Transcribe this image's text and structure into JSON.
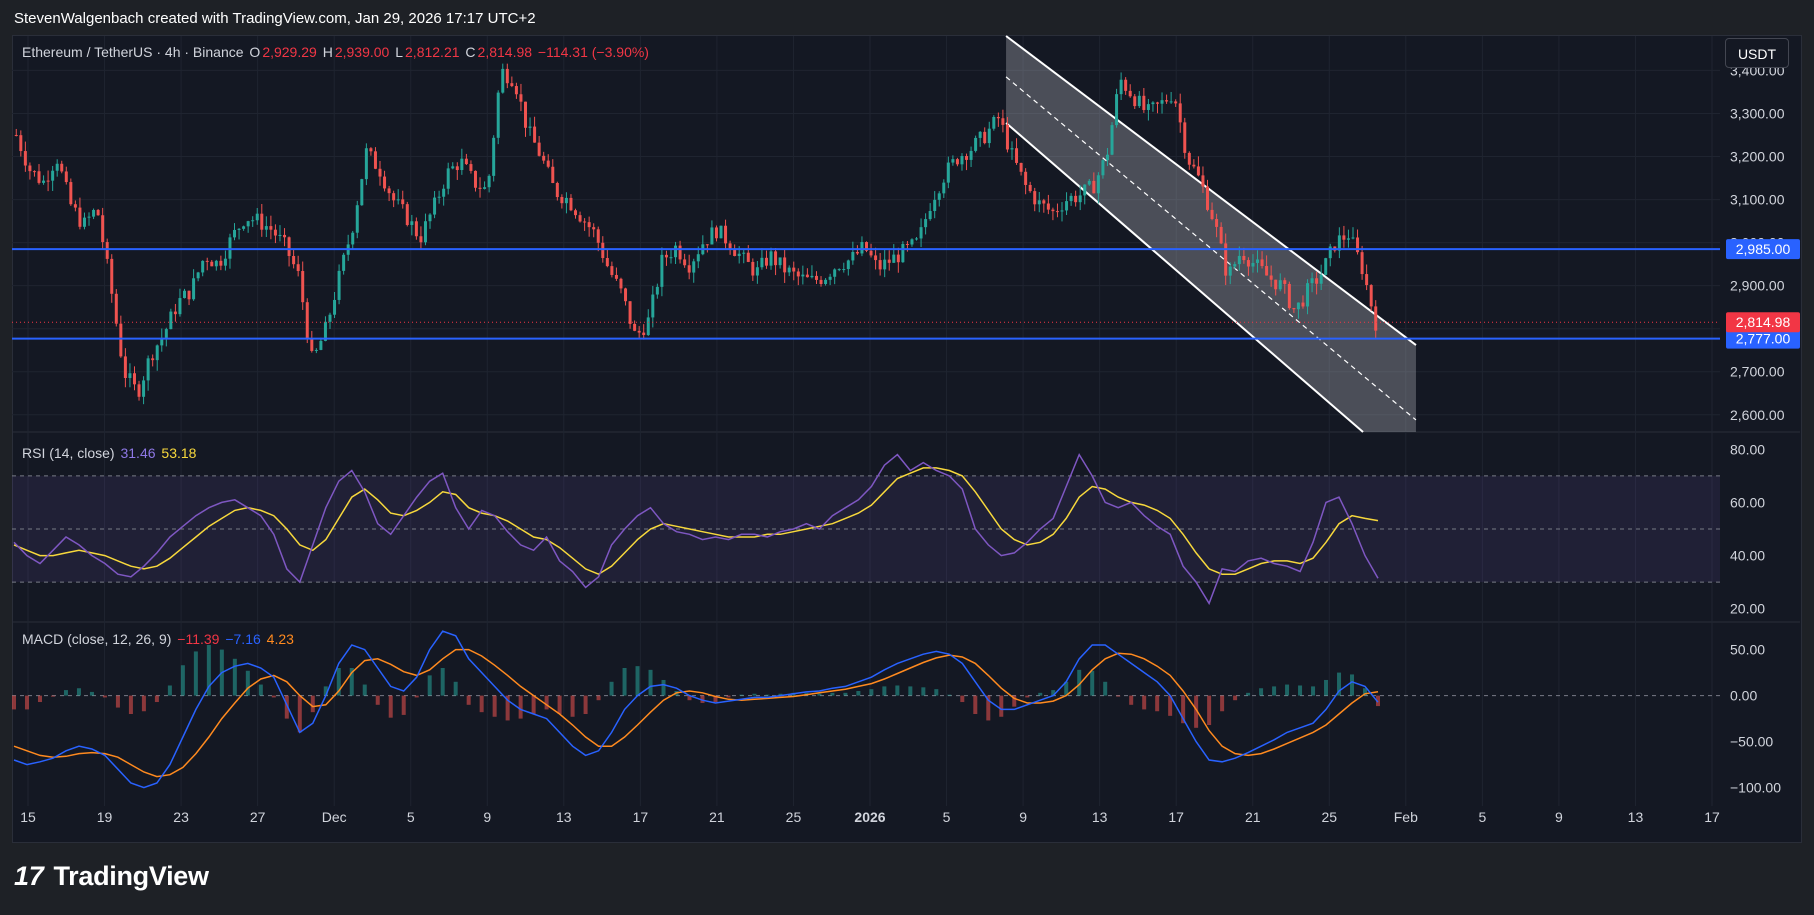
{
  "header": {
    "credit": "StevenWalgenbach created with TradingView.com, Jan 29, 2026 17:17 UTC+2"
  },
  "legend": {
    "symbol": "Ethereum / TetherUS · 4h · Binance",
    "o_label": "O",
    "o_value": "2,929.29",
    "h_label": "H",
    "h_value": "2,939.00",
    "l_label": "L",
    "l_value": "2,812.21",
    "c_label": "C",
    "c_value": "2,814.98",
    "change": "−114.31 (−3.90%)"
  },
  "rsi_legend": {
    "label": "RSI (14, close)",
    "rsi": "31.46",
    "ma": "53.18"
  },
  "macd_legend": {
    "label": "MACD (close, 12, 26, 9)",
    "hist": "−11.39",
    "macd": "−7.16",
    "signal": "4.23"
  },
  "currency_button": "USDT",
  "logo": {
    "mark": "17",
    "text": "TradingView"
  },
  "colors": {
    "bg": "#141823",
    "grid": "#1f2430",
    "up": "#26a69a",
    "down": "#ef5350",
    "level": "#2962ff",
    "rsi": "#7e57c2",
    "rsi_ma": "#f7d83c",
    "macd": "#2962ff",
    "signal": "#ff8a1f",
    "price_tag": "#f23645"
  },
  "chart_data": [
    {
      "type": "candlestick",
      "title": "Ethereum / TetherUS · 4h · Binance",
      "ylim": [
        2560,
        3480
      ],
      "y_ticks": [
        "3,400.00",
        "3,300.00",
        "3,200.00",
        "3,100.00",
        "3,000.00",
        "2,900.00",
        "2,800.00",
        "2,700.00",
        "2,600.00"
      ],
      "x_ticks": [
        "15",
        "19",
        "23",
        "27",
        "Dec",
        "5",
        "9",
        "13",
        "17",
        "21",
        "25",
        "2026",
        "5",
        "9",
        "13",
        "17",
        "21",
        "25",
        "Feb",
        "5",
        "9",
        "13",
        "17"
      ],
      "close_path": [
        3250,
        3170,
        3140,
        3200,
        3090,
        3040,
        3080,
        2900,
        2700,
        2650,
        2740,
        2790,
        2860,
        2890,
        2970,
        2950,
        3010,
        3060,
        3050,
        3030,
        2990,
        2920,
        2720,
        2800,
        2920,
        3040,
        3210,
        3170,
        3100,
        3060,
        3010,
        3080,
        3160,
        3190,
        3140,
        3120,
        3400,
        3380,
        3260,
        3200,
        3120,
        3100,
        3060,
        3020,
        2940,
        2880,
        2780,
        2820,
        2960,
        2990,
        2950,
        3000,
        3030,
        3000,
        2960,
        2930,
        2970,
        2940,
        2920,
        2910,
        2920,
        2950,
        2960,
        2990,
        2940,
        2960,
        2980,
        3000,
        3100,
        3160,
        3200,
        3220,
        3250,
        3290,
        3200,
        3130,
        3090,
        3070,
        3100,
        3110,
        3130,
        3200,
        3380,
        3340,
        3300,
        3320,
        3350,
        3200,
        3140,
        3050,
        2920,
        2980,
        2950,
        2920,
        2900,
        2840,
        2890,
        2930,
        3000,
        3020,
        2940,
        2815
      ],
      "levels": [
        2985,
        2777
      ],
      "level_labels": [
        "2,985.00",
        "2,777.00"
      ],
      "last_price": 2814.98,
      "last_price_label": "2,814.98",
      "channel": {
        "upper": [
          [
            0.582,
            3480
          ],
          [
            0.822,
            2762
          ]
        ],
        "lower": [
          [
            0.582,
            3278
          ],
          [
            0.791,
            2560
          ]
        ],
        "mid": [
          [
            0.582,
            3385
          ],
          [
            0.822,
            2588
          ]
        ]
      }
    },
    {
      "type": "line",
      "title": "RSI (14, close)",
      "ylim": [
        15,
        85
      ],
      "y_ticks": [
        "80.00",
        "60.00",
        "40.00",
        "20.00"
      ],
      "bands": [
        70,
        50,
        30
      ],
      "series": [
        {
          "name": "RSI",
          "values": [
            45,
            40,
            37,
            42,
            47,
            44,
            40,
            37,
            33,
            32,
            36,
            41,
            47,
            51,
            55,
            58,
            60,
            61,
            58,
            55,
            48,
            35,
            30,
            44,
            58,
            68,
            72,
            64,
            52,
            48,
            55,
            62,
            68,
            71,
            58,
            50,
            57,
            55,
            49,
            44,
            42,
            47,
            38,
            34,
            28,
            32,
            44,
            50,
            55,
            58,
            52,
            49,
            48,
            46,
            47,
            46,
            48,
            48,
            47,
            49,
            50,
            52,
            50,
            55,
            58,
            61,
            66,
            74,
            78,
            72,
            75,
            72,
            70,
            65,
            50,
            44,
            40,
            41,
            45,
            50,
            54,
            66,
            78,
            70,
            60,
            58,
            60,
            55,
            51,
            48,
            36,
            30,
            22,
            35,
            34,
            38,
            39,
            37,
            36,
            34,
            45,
            60,
            62,
            52,
            40,
            31.46
          ]
        },
        {
          "name": "MA",
          "values": [
            44,
            42,
            40,
            40,
            41,
            42,
            41,
            40,
            38,
            36,
            35,
            36,
            39,
            43,
            47,
            51,
            54,
            57,
            58,
            57,
            55,
            50,
            44,
            42,
            46,
            54,
            62,
            65,
            61,
            56,
            55,
            57,
            60,
            64,
            63,
            58,
            56,
            55,
            53,
            50,
            47,
            46,
            43,
            39,
            35,
            33,
            36,
            41,
            46,
            50,
            52,
            51,
            50,
            49,
            48,
            47,
            47,
            47,
            48,
            48,
            49,
            50,
            51,
            52,
            54,
            56,
            59,
            64,
            69,
            71,
            73,
            73,
            72,
            70,
            64,
            57,
            50,
            46,
            44,
            45,
            48,
            54,
            62,
            66,
            65,
            62,
            60,
            59,
            57,
            54,
            48,
            41,
            35,
            33,
            33,
            35,
            37,
            38,
            38,
            37,
            39,
            45,
            52,
            55,
            54,
            53.18
          ]
        }
      ]
    },
    {
      "type": "line",
      "title": "MACD (close, 12, 26, 9)",
      "ylim": [
        -120,
        80
      ],
      "y_ticks": [
        "50.00",
        "0.00",
        "−50.00",
        "−100.00"
      ],
      "series": [
        {
          "name": "MACD",
          "values": [
            -70,
            -75,
            -72,
            -68,
            -60,
            -55,
            -58,
            -65,
            -80,
            -95,
            -100,
            -95,
            -75,
            -45,
            -15,
            10,
            25,
            32,
            35,
            30,
            20,
            -10,
            -40,
            -30,
            0,
            35,
            55,
            50,
            30,
            10,
            5,
            20,
            50,
            70,
            65,
            40,
            25,
            10,
            -5,
            -15,
            -20,
            -25,
            -40,
            -55,
            -65,
            -60,
            -40,
            -15,
            0,
            10,
            12,
            8,
            0,
            -5,
            -8,
            -6,
            -4,
            -2,
            -2,
            0,
            2,
            4,
            5,
            8,
            10,
            15,
            20,
            28,
            35,
            40,
            45,
            48,
            45,
            35,
            15,
            -5,
            -15,
            -15,
            -10,
            -5,
            0,
            15,
            40,
            55,
            55,
            45,
            35,
            25,
            15,
            0,
            -25,
            -50,
            -70,
            -72,
            -68,
            -62,
            -55,
            -48,
            -40,
            -35,
            -30,
            -15,
            5,
            15,
            10,
            -7.16
          ]
        },
        {
          "name": "Signal",
          "values": [
            -55,
            -60,
            -65,
            -67,
            -66,
            -63,
            -62,
            -63,
            -67,
            -75,
            -83,
            -88,
            -86,
            -78,
            -63,
            -45,
            -25,
            -8,
            8,
            18,
            22,
            15,
            0,
            -12,
            -10,
            5,
            25,
            38,
            40,
            34,
            26,
            22,
            28,
            40,
            50,
            50,
            43,
            33,
            22,
            10,
            0,
            -10,
            -20,
            -32,
            -45,
            -55,
            -55,
            -45,
            -32,
            -18,
            -5,
            3,
            5,
            3,
            -1,
            -4,
            -5,
            -4,
            -3,
            -2,
            -1,
            1,
            3,
            5,
            7,
            10,
            13,
            18,
            24,
            30,
            36,
            41,
            44,
            42,
            35,
            22,
            8,
            -3,
            -8,
            -8,
            -6,
            0,
            12,
            28,
            40,
            46,
            45,
            40,
            32,
            22,
            5,
            -15,
            -38,
            -55,
            -63,
            -65,
            -63,
            -58,
            -52,
            -46,
            -40,
            -32,
            -20,
            -8,
            2,
            4.23
          ]
        },
        {
          "name": "Histogram",
          "values": [
            -15,
            -15,
            -7,
            -1,
            6,
            8,
            4,
            -2,
            -13,
            -20,
            -17,
            -7,
            11,
            33,
            48,
            55,
            50,
            40,
            27,
            12,
            -2,
            -25,
            -40,
            -18,
            10,
            30,
            30,
            12,
            -10,
            -24,
            -21,
            -2,
            22,
            30,
            15,
            -10,
            -18,
            -23,
            -27,
            -25,
            -20,
            -15,
            -20,
            -23,
            -20,
            -5,
            15,
            30,
            32,
            28,
            17,
            5,
            -5,
            -8,
            -7,
            -2,
            1,
            2,
            1,
            2,
            3,
            3,
            2,
            3,
            3,
            5,
            7,
            10,
            11,
            10,
            9,
            7,
            1,
            -7,
            -20,
            -27,
            -23,
            -12,
            -2,
            3,
            6,
            15,
            28,
            27,
            15,
            -1,
            -10,
            -15,
            -17,
            -22,
            -30,
            -35,
            -32,
            -17,
            -5,
            3,
            8,
            10,
            12,
            11,
            10,
            17,
            25,
            23,
            8,
            -11.39
          ]
        }
      ]
    }
  ]
}
